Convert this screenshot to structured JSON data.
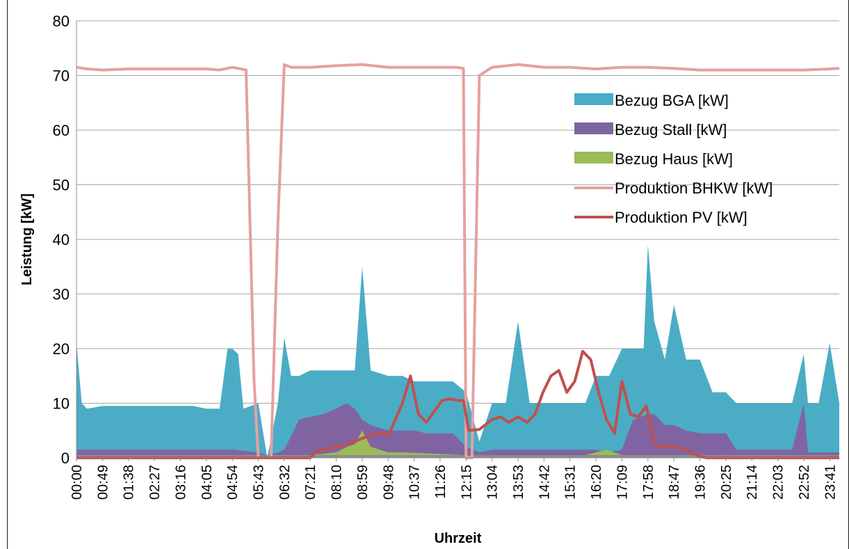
{
  "chart_data": {
    "type": "area",
    "title": "",
    "xlabel": "Uhrzeit",
    "ylabel": "Leistung [kW]",
    "ylim": [
      0,
      80
    ],
    "yticks": [
      0,
      10,
      20,
      30,
      40,
      50,
      60,
      70,
      80
    ],
    "grid": true,
    "legend_position": "top-right",
    "x_tick_labels": [
      "00:00",
      "00:49",
      "01:38",
      "02:27",
      "03:16",
      "04:05",
      "04:54",
      "05:43",
      "06:32",
      "07:21",
      "08:10",
      "08:59",
      "09:48",
      "10:37",
      "11:26",
      "12:15",
      "13:04",
      "13:53",
      "14:42",
      "15:31",
      "16:20",
      "17:09",
      "17:58",
      "18:47",
      "19:36",
      "20:25",
      "21:14",
      "22:03",
      "22:52",
      "23:41"
    ],
    "series": [
      {
        "name": "Bezug BGA [kW]",
        "kind": "area",
        "color": "#4BACC6",
        "x": [
          "00:00",
          "00:10",
          "00:20",
          "00:49",
          "01:10",
          "01:38",
          "02:00",
          "02:27",
          "02:50",
          "03:16",
          "03:40",
          "04:05",
          "04:30",
          "04:45",
          "04:54",
          "05:05",
          "05:15",
          "05:43",
          "06:00",
          "06:20",
          "06:32",
          "06:45",
          "07:00",
          "07:21",
          "07:45",
          "08:10",
          "08:30",
          "08:45",
          "08:59",
          "09:15",
          "09:48",
          "10:15",
          "10:37",
          "11:00",
          "11:26",
          "11:50",
          "12:15",
          "12:40",
          "13:04",
          "13:30",
          "13:53",
          "14:15",
          "14:42",
          "15:10",
          "15:31",
          "16:00",
          "16:20",
          "16:45",
          "17:09",
          "17:30",
          "17:50",
          "17:58",
          "18:10",
          "18:30",
          "18:47",
          "19:10",
          "19:36",
          "20:00",
          "20:25",
          "20:45",
          "21:14",
          "21:40",
          "22:03",
          "22:30",
          "22:52",
          "23:00",
          "23:20",
          "23:41",
          "23:59"
        ],
        "values": [
          21,
          10,
          9,
          9.5,
          9.5,
          9.5,
          9.5,
          9.5,
          9.5,
          9.5,
          9.5,
          9,
          9,
          20,
          20,
          19,
          9,
          10,
          0,
          10,
          22,
          15,
          15,
          16,
          16,
          16,
          16,
          16,
          35,
          16,
          15,
          15,
          14,
          14,
          14,
          14,
          12,
          3,
          10,
          10,
          25,
          10,
          10,
          10,
          10,
          10,
          15,
          15,
          20,
          20,
          20,
          39,
          25,
          18,
          28,
          18,
          18,
          12,
          12,
          10,
          10,
          10,
          10,
          10,
          19,
          10,
          10,
          21,
          10
        ]
      },
      {
        "name": "Bezug Stall [kW]",
        "kind": "area",
        "color": "#8064A2",
        "x": [
          "00:00",
          "04:54",
          "05:43",
          "06:00",
          "06:20",
          "06:32",
          "06:45",
          "07:00",
          "07:21",
          "07:45",
          "08:10",
          "08:30",
          "08:45",
          "08:59",
          "09:15",
          "09:48",
          "10:15",
          "10:37",
          "11:00",
          "11:26",
          "11:50",
          "12:15",
          "12:40",
          "13:04",
          "14:42",
          "16:20",
          "16:45",
          "17:09",
          "17:30",
          "17:58",
          "18:10",
          "18:30",
          "18:47",
          "19:10",
          "19:36",
          "20:00",
          "20:25",
          "20:45",
          "22:30",
          "22:52",
          "23:00",
          "23:20",
          "23:59"
        ],
        "values": [
          1.5,
          1.5,
          1,
          0.5,
          1,
          1.5,
          4,
          7,
          7.5,
          8,
          9,
          10,
          9,
          7,
          6,
          5,
          5,
          5,
          4.5,
          4.5,
          4.5,
          2,
          1,
          1.5,
          1.5,
          1.5,
          1,
          1.5,
          7,
          8,
          8,
          6,
          6,
          5,
          4.5,
          4.5,
          4.5,
          1.5,
          1.5,
          10,
          1,
          1,
          1
        ]
      },
      {
        "name": "Bezug Haus [kW]",
        "kind": "area",
        "color": "#9BBB59",
        "x": [
          "00:00",
          "07:21",
          "08:10",
          "08:30",
          "08:45",
          "08:59",
          "09:15",
          "09:48",
          "10:15",
          "12:15",
          "13:04",
          "16:00",
          "16:20",
          "16:40",
          "17:09",
          "18:47",
          "19:36",
          "23:59"
        ],
        "values": [
          0.5,
          0.5,
          1,
          2,
          2.5,
          5,
          2,
          1,
          1,
          0.5,
          0.5,
          0.5,
          1,
          1.5,
          0.5,
          0.5,
          0.5,
          0.5
        ]
      },
      {
        "name": "Produktion BHKW [kW]",
        "kind": "line",
        "color": "#E6A0A0",
        "x": [
          "00:00",
          "00:20",
          "00:49",
          "01:38",
          "02:27",
          "03:16",
          "04:05",
          "04:30",
          "04:54",
          "05:20",
          "05:35",
          "05:43",
          "05:55",
          "06:07",
          "06:20",
          "06:32",
          "06:45",
          "07:21",
          "08:10",
          "08:59",
          "09:48",
          "10:37",
          "11:26",
          "11:56",
          "12:10",
          "12:15",
          "12:26",
          "12:40",
          "13:04",
          "13:53",
          "14:42",
          "15:31",
          "16:20",
          "17:09",
          "17:58",
          "18:47",
          "19:36",
          "20:25",
          "21:14",
          "22:03",
          "22:52",
          "23:41",
          "23:59"
        ],
        "values": [
          71.5,
          71.2,
          71,
          71.2,
          71.2,
          71.2,
          71.2,
          71,
          71.5,
          71,
          14,
          0,
          0,
          0,
          43,
          72,
          71.5,
          71.5,
          71.8,
          72,
          71.5,
          71.5,
          71.5,
          71.5,
          71.3,
          0,
          0,
          70,
          71.5,
          72,
          71.5,
          71.5,
          71.2,
          71.5,
          71.5,
          71.3,
          71,
          71,
          71,
          71,
          71,
          71.2,
          71.3
        ]
      },
      {
        "name": "Produktion PV [kW]",
        "kind": "line",
        "color": "#C0504D",
        "x": [
          "00:00",
          "06:32",
          "07:21",
          "07:30",
          "07:45",
          "08:10",
          "08:30",
          "08:45",
          "09:10",
          "09:30",
          "09:48",
          "10:15",
          "10:30",
          "10:45",
          "11:00",
          "11:15",
          "11:30",
          "11:45",
          "12:00",
          "12:10",
          "12:20",
          "12:40",
          "13:04",
          "13:20",
          "13:35",
          "13:53",
          "14:10",
          "14:25",
          "14:40",
          "14:55",
          "15:10",
          "15:25",
          "15:40",
          "15:55",
          "16:10",
          "16:25",
          "16:40",
          "16:55",
          "17:09",
          "17:25",
          "17:40",
          "17:55",
          "18:10",
          "18:30",
          "18:50",
          "19:10",
          "19:36",
          "19:50",
          "20:25",
          "23:59"
        ],
        "values": [
          0,
          0,
          0,
          1,
          1.5,
          2,
          2.5,
          3,
          4,
          4.5,
          4,
          10,
          15,
          8,
          6.5,
          8.5,
          10.5,
          10.8,
          10.5,
          10.5,
          5,
          5.2,
          7,
          7.5,
          6.5,
          7.5,
          6.5,
          8,
          12,
          15,
          16,
          12,
          14,
          19.5,
          18,
          12,
          7,
          4.5,
          14,
          8,
          7.5,
          9.5,
          2.5,
          2,
          2,
          1.5,
          0.2,
          0,
          0,
          0
        ]
      }
    ]
  }
}
